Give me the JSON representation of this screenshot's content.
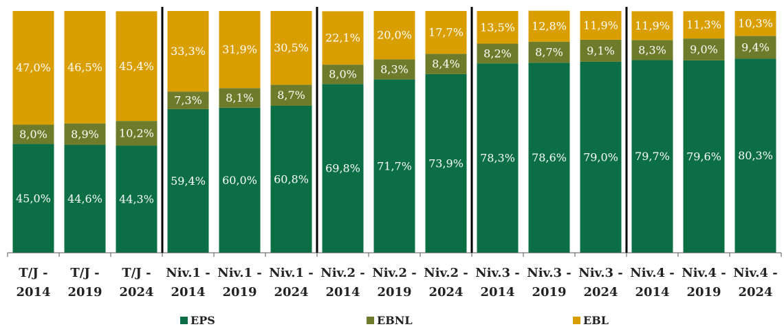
{
  "chart_data": {
    "type": "stacked_bar",
    "categories": [
      "T/J - 2014",
      "T/J - 2019",
      "T/J - 2024",
      "Niv.1 - 2014",
      "Niv.1 - 2019",
      "Niv.1 - 2024",
      "Niv.2 - 2014",
      "Niv.2 - 2019",
      "Niv.2 - 2024",
      "Niv.3 - 2014",
      "Niv.3 - 2019",
      "Niv.3 - 2024",
      "Niv.4 - 2014",
      "Niv.4 - 2019",
      "Niv.4 - 2024"
    ],
    "series": [
      {
        "name": "EPS",
        "color": "#0b6e44",
        "values": [
          45.0,
          44.6,
          44.3,
          59.4,
          60.0,
          60.8,
          69.8,
          71.7,
          73.9,
          78.3,
          78.6,
          79.0,
          79.7,
          79.6,
          80.3
        ],
        "value_labels": [
          "45,0%",
          "44,6%",
          "44,3%",
          "59,4%",
          "60,0%",
          "60,8%",
          "69,8%",
          "71,7%",
          "73,9%",
          "78,3%",
          "78,6%",
          "79,0%",
          "79,7%",
          "79,6%",
          "80,3%"
        ]
      },
      {
        "name": "EBNL",
        "color": "#6e7b2b",
        "values": [
          8.0,
          8.9,
          10.2,
          7.3,
          8.1,
          8.7,
          8.0,
          8.3,
          8.4,
          8.2,
          8.7,
          9.1,
          8.3,
          9.0,
          9.4
        ],
        "value_labels": [
          "8,0%",
          "8,9%",
          "10,2%",
          "7,3%",
          "8,1%",
          "8,7%",
          "8,0%",
          "8,3%",
          "8,4%",
          "8,2%",
          "8,7%",
          "9,1%",
          "8,3%",
          "9,0%",
          "9,4%"
        ]
      },
      {
        "name": "EBL",
        "color": "#d99f00",
        "values": [
          47.0,
          46.5,
          45.4,
          33.3,
          31.9,
          30.5,
          22.1,
          20.0,
          17.7,
          13.5,
          12.8,
          11.9,
          11.9,
          11.3,
          10.3
        ],
        "value_labels": [
          "47,0%",
          "46,5%",
          "45,4%",
          "33,3%",
          "31,9%",
          "30,5%",
          "22,1%",
          "20,0%",
          "17,7%",
          "13,5%",
          "12,8%",
          "11,9%",
          "11,9%",
          "11,3%",
          "10,3%"
        ]
      }
    ],
    "ylim": [
      0,
      100
    ],
    "legend": "bottom"
  }
}
